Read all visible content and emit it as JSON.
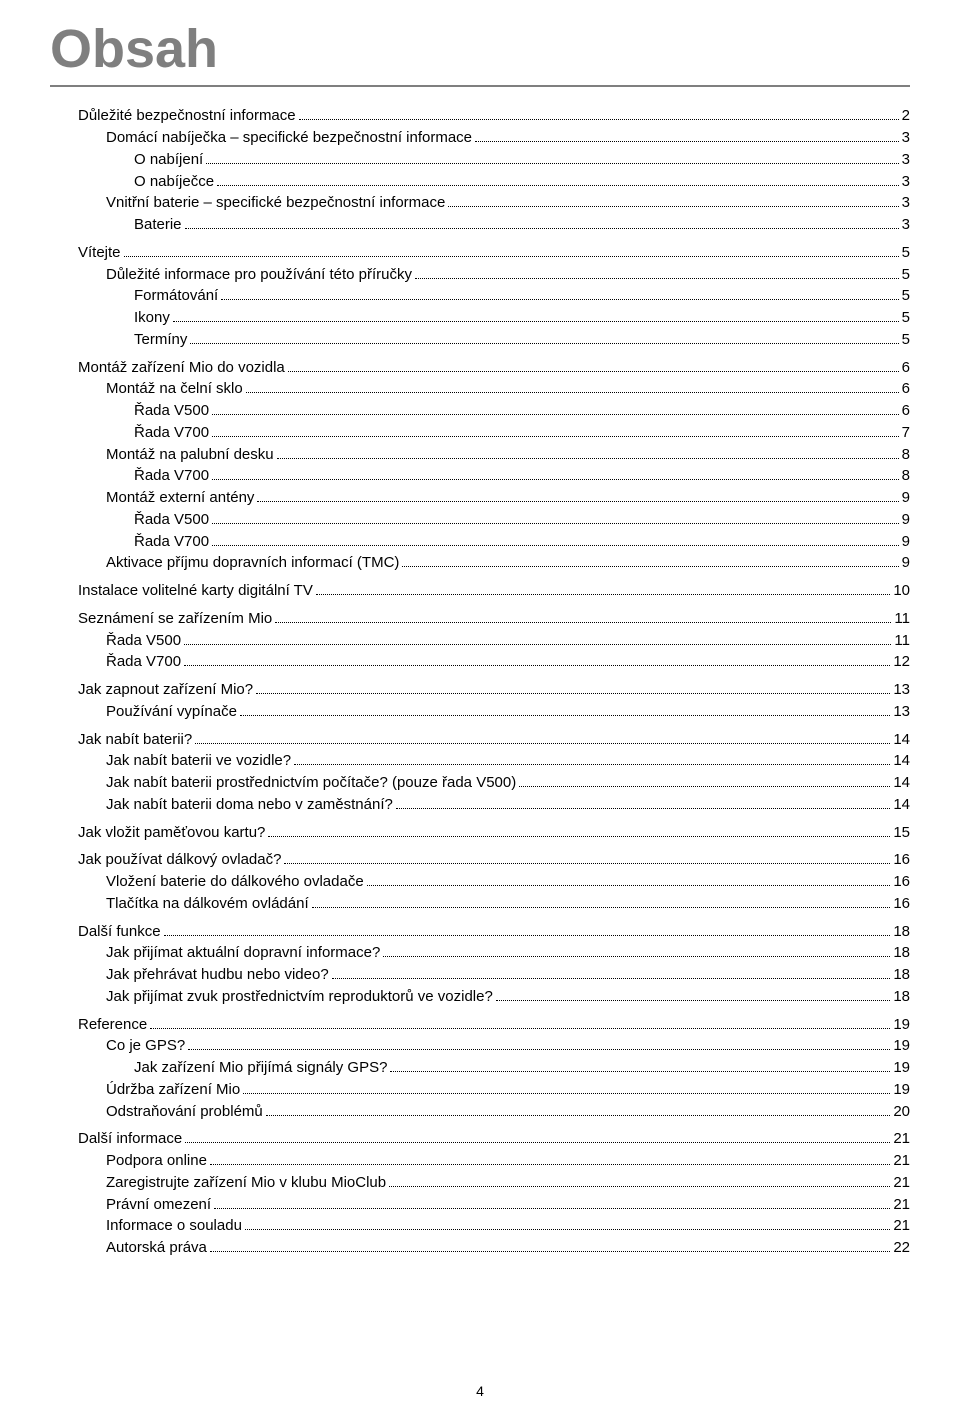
{
  "title": "Obsah",
  "page_number": "4",
  "colors": {
    "title_color": "#7f7f7f",
    "title_border": "#7f7f7f",
    "text_color": "#000000",
    "background": "#ffffff",
    "leader": "#000000"
  },
  "typography": {
    "title_fontsize_pt": 40,
    "body_fontsize_pt": 11,
    "font_family": "Arial"
  },
  "toc": [
    {
      "level": 0,
      "label": "Důležité bezpečnostní informace",
      "page": "2"
    },
    {
      "level": 1,
      "label": "Domácí nabíječka – specifické bezpečnostní informace",
      "page": "3"
    },
    {
      "level": 2,
      "label": "O nabíjení",
      "page": "3"
    },
    {
      "level": 2,
      "label": "O nabíječce",
      "page": "3"
    },
    {
      "level": 1,
      "label": "Vnitřní baterie – specifické bezpečnostní informace",
      "page": "3"
    },
    {
      "level": 2,
      "label": "Baterie",
      "page": "3"
    },
    {
      "level": 0,
      "label": "Vítejte",
      "page": "5"
    },
    {
      "level": 1,
      "label": "Důležité informace pro používání této příručky",
      "page": "5"
    },
    {
      "level": 2,
      "label": "Formátování",
      "page": "5"
    },
    {
      "level": 2,
      "label": "Ikony",
      "page": "5"
    },
    {
      "level": 2,
      "label": "Termíny",
      "page": "5"
    },
    {
      "level": 0,
      "label": "Montáž zařízení Mio do vozidla",
      "page": "6"
    },
    {
      "level": 1,
      "label": "Montáž na čelní sklo",
      "page": "6"
    },
    {
      "level": 2,
      "label": "Řada V500",
      "page": "6"
    },
    {
      "level": 2,
      "label": "Řada V700",
      "page": "7"
    },
    {
      "level": 1,
      "label": "Montáž na palubní desku",
      "page": "8"
    },
    {
      "level": 2,
      "label": "Řada V700",
      "page": "8"
    },
    {
      "level": 1,
      "label": "Montáž externí antény",
      "page": "9"
    },
    {
      "level": 2,
      "label": "Řada V500",
      "page": "9"
    },
    {
      "level": 2,
      "label": "Řada V700",
      "page": "9"
    },
    {
      "level": 1,
      "label": "Aktivace příjmu dopravních informací (TMC)",
      "page": "9"
    },
    {
      "level": 0,
      "label": "Instalace volitelné karty digitální TV",
      "page": "10"
    },
    {
      "level": 0,
      "label": "Seznámení se zařízením Mio",
      "page": "11"
    },
    {
      "level": 1,
      "label": "Řada V500",
      "page": "11"
    },
    {
      "level": 1,
      "label": "Řada V700",
      "page": "12"
    },
    {
      "level": 0,
      "label": "Jak zapnout zařízení Mio?",
      "page": "13"
    },
    {
      "level": 1,
      "label": "Používání vypínače",
      "page": "13"
    },
    {
      "level": 0,
      "label": "Jak nabít baterii?",
      "page": "14"
    },
    {
      "level": 1,
      "label": "Jak nabít baterii ve vozidle?",
      "page": "14"
    },
    {
      "level": 1,
      "label": "Jak nabít baterii prostřednictvím počítače? (pouze řada V500)",
      "page": "14"
    },
    {
      "level": 1,
      "label": "Jak nabít baterii doma nebo v zaměstnání?",
      "page": "14"
    },
    {
      "level": 0,
      "label": "Jak vložit paměťovou kartu?",
      "page": "15"
    },
    {
      "level": 0,
      "label": "Jak používat dálkový ovladač?",
      "page": "16"
    },
    {
      "level": 1,
      "label": "Vložení baterie do dálkového ovladače",
      "page": "16"
    },
    {
      "level": 1,
      "label": "Tlačítka na dálkovém ovládání",
      "page": "16"
    },
    {
      "level": 0,
      "label": "Další funkce",
      "page": "18"
    },
    {
      "level": 1,
      "label": "Jak přijímat aktuální dopravní informace?",
      "page": "18"
    },
    {
      "level": 1,
      "label": "Jak přehrávat hudbu nebo video?",
      "page": "18"
    },
    {
      "level": 1,
      "label": "Jak přijímat zvuk prostřednictvím reproduktorů ve vozidle?",
      "page": "18"
    },
    {
      "level": 0,
      "label": "Reference",
      "page": "19"
    },
    {
      "level": 1,
      "label": "Co je GPS?",
      "page": "19"
    },
    {
      "level": 2,
      "label": "Jak zařízení Mio přijímá signály GPS?",
      "page": "19"
    },
    {
      "level": 1,
      "label": "Údržba zařízení Mio",
      "page": "19"
    },
    {
      "level": 1,
      "label": "Odstraňování problémů",
      "page": "20"
    },
    {
      "level": 0,
      "label": "Další informace",
      "page": "21"
    },
    {
      "level": 1,
      "label": "Podpora online",
      "page": "21"
    },
    {
      "level": 1,
      "label": "Zaregistrujte zařízení Mio v klubu MioClub",
      "page": "21"
    },
    {
      "level": 1,
      "label": "Právní omezení",
      "page": "21"
    },
    {
      "level": 1,
      "label": "Informace o souladu",
      "page": "21"
    },
    {
      "level": 1,
      "label": "Autorská práva",
      "page": "22"
    }
  ]
}
